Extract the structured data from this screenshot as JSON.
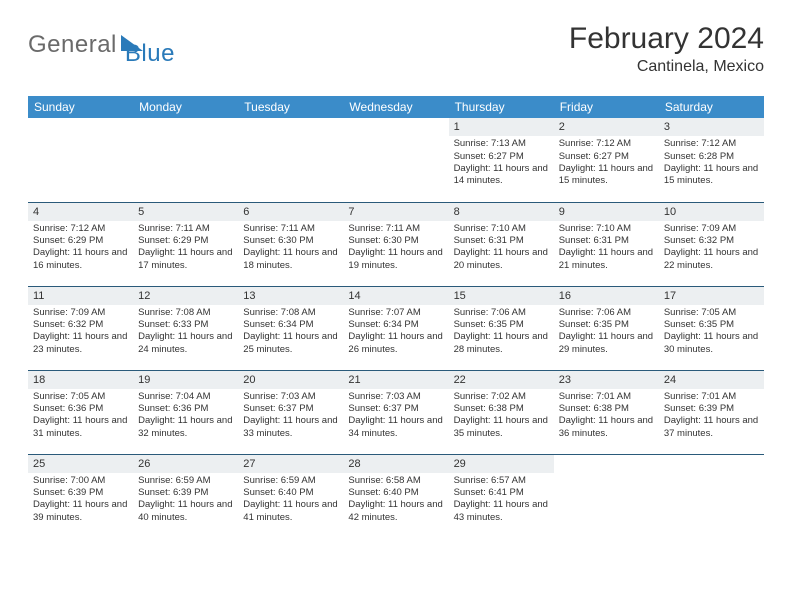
{
  "logo": {
    "text1": "General",
    "text2": "Blue"
  },
  "title": "February 2024",
  "location": "Cantinela, Mexico",
  "day_headers": [
    "Sunday",
    "Monday",
    "Tuesday",
    "Wednesday",
    "Thursday",
    "Friday",
    "Saturday"
  ],
  "colors": {
    "header_bg": "#3b8cc9",
    "header_text": "#ffffff",
    "daynum_bg": "#eceff1",
    "row_border": "#2a5a7a",
    "logo_gray": "#6a6a6a",
    "logo_blue": "#2a7ab9",
    "text": "#333333",
    "page_bg": "#ffffff"
  },
  "weeks": [
    [
      null,
      null,
      null,
      null,
      {
        "n": "1",
        "sr": "Sunrise: 7:13 AM",
        "ss": "Sunset: 6:27 PM",
        "dl": "Daylight: 11 hours and 14 minutes."
      },
      {
        "n": "2",
        "sr": "Sunrise: 7:12 AM",
        "ss": "Sunset: 6:27 PM",
        "dl": "Daylight: 11 hours and 15 minutes."
      },
      {
        "n": "3",
        "sr": "Sunrise: 7:12 AM",
        "ss": "Sunset: 6:28 PM",
        "dl": "Daylight: 11 hours and 15 minutes."
      }
    ],
    [
      {
        "n": "4",
        "sr": "Sunrise: 7:12 AM",
        "ss": "Sunset: 6:29 PM",
        "dl": "Daylight: 11 hours and 16 minutes."
      },
      {
        "n": "5",
        "sr": "Sunrise: 7:11 AM",
        "ss": "Sunset: 6:29 PM",
        "dl": "Daylight: 11 hours and 17 minutes."
      },
      {
        "n": "6",
        "sr": "Sunrise: 7:11 AM",
        "ss": "Sunset: 6:30 PM",
        "dl": "Daylight: 11 hours and 18 minutes."
      },
      {
        "n": "7",
        "sr": "Sunrise: 7:11 AM",
        "ss": "Sunset: 6:30 PM",
        "dl": "Daylight: 11 hours and 19 minutes."
      },
      {
        "n": "8",
        "sr": "Sunrise: 7:10 AM",
        "ss": "Sunset: 6:31 PM",
        "dl": "Daylight: 11 hours and 20 minutes."
      },
      {
        "n": "9",
        "sr": "Sunrise: 7:10 AM",
        "ss": "Sunset: 6:31 PM",
        "dl": "Daylight: 11 hours and 21 minutes."
      },
      {
        "n": "10",
        "sr": "Sunrise: 7:09 AM",
        "ss": "Sunset: 6:32 PM",
        "dl": "Daylight: 11 hours and 22 minutes."
      }
    ],
    [
      {
        "n": "11",
        "sr": "Sunrise: 7:09 AM",
        "ss": "Sunset: 6:32 PM",
        "dl": "Daylight: 11 hours and 23 minutes."
      },
      {
        "n": "12",
        "sr": "Sunrise: 7:08 AM",
        "ss": "Sunset: 6:33 PM",
        "dl": "Daylight: 11 hours and 24 minutes."
      },
      {
        "n": "13",
        "sr": "Sunrise: 7:08 AM",
        "ss": "Sunset: 6:34 PM",
        "dl": "Daylight: 11 hours and 25 minutes."
      },
      {
        "n": "14",
        "sr": "Sunrise: 7:07 AM",
        "ss": "Sunset: 6:34 PM",
        "dl": "Daylight: 11 hours and 26 minutes."
      },
      {
        "n": "15",
        "sr": "Sunrise: 7:06 AM",
        "ss": "Sunset: 6:35 PM",
        "dl": "Daylight: 11 hours and 28 minutes."
      },
      {
        "n": "16",
        "sr": "Sunrise: 7:06 AM",
        "ss": "Sunset: 6:35 PM",
        "dl": "Daylight: 11 hours and 29 minutes."
      },
      {
        "n": "17",
        "sr": "Sunrise: 7:05 AM",
        "ss": "Sunset: 6:35 PM",
        "dl": "Daylight: 11 hours and 30 minutes."
      }
    ],
    [
      {
        "n": "18",
        "sr": "Sunrise: 7:05 AM",
        "ss": "Sunset: 6:36 PM",
        "dl": "Daylight: 11 hours and 31 minutes."
      },
      {
        "n": "19",
        "sr": "Sunrise: 7:04 AM",
        "ss": "Sunset: 6:36 PM",
        "dl": "Daylight: 11 hours and 32 minutes."
      },
      {
        "n": "20",
        "sr": "Sunrise: 7:03 AM",
        "ss": "Sunset: 6:37 PM",
        "dl": "Daylight: 11 hours and 33 minutes."
      },
      {
        "n": "21",
        "sr": "Sunrise: 7:03 AM",
        "ss": "Sunset: 6:37 PM",
        "dl": "Daylight: 11 hours and 34 minutes."
      },
      {
        "n": "22",
        "sr": "Sunrise: 7:02 AM",
        "ss": "Sunset: 6:38 PM",
        "dl": "Daylight: 11 hours and 35 minutes."
      },
      {
        "n": "23",
        "sr": "Sunrise: 7:01 AM",
        "ss": "Sunset: 6:38 PM",
        "dl": "Daylight: 11 hours and 36 minutes."
      },
      {
        "n": "24",
        "sr": "Sunrise: 7:01 AM",
        "ss": "Sunset: 6:39 PM",
        "dl": "Daylight: 11 hours and 37 minutes."
      }
    ],
    [
      {
        "n": "25",
        "sr": "Sunrise: 7:00 AM",
        "ss": "Sunset: 6:39 PM",
        "dl": "Daylight: 11 hours and 39 minutes."
      },
      {
        "n": "26",
        "sr": "Sunrise: 6:59 AM",
        "ss": "Sunset: 6:39 PM",
        "dl": "Daylight: 11 hours and 40 minutes."
      },
      {
        "n": "27",
        "sr": "Sunrise: 6:59 AM",
        "ss": "Sunset: 6:40 PM",
        "dl": "Daylight: 11 hours and 41 minutes."
      },
      {
        "n": "28",
        "sr": "Sunrise: 6:58 AM",
        "ss": "Sunset: 6:40 PM",
        "dl": "Daylight: 11 hours and 42 minutes."
      },
      {
        "n": "29",
        "sr": "Sunrise: 6:57 AM",
        "ss": "Sunset: 6:41 PM",
        "dl": "Daylight: 11 hours and 43 minutes."
      },
      null,
      null
    ]
  ]
}
